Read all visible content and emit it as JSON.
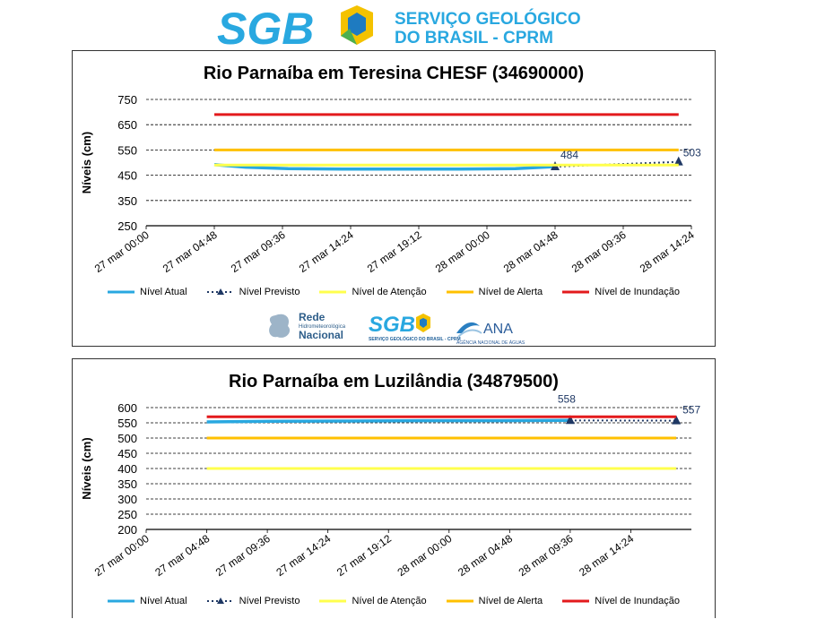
{
  "header": {
    "logo_text": "SGB",
    "org_line1": "SERVIÇO GEOLÓGICO",
    "org_line2": "DO BRASIL - CPRM"
  },
  "partners": {
    "rede_line1": "Rede",
    "rede_line2": "Hidrometeorológica",
    "rede_line3": "Nacional",
    "sgb_small": "SGB",
    "sgb_small_sub": "SERVIÇO GEOLÓGICO DO BRASIL - CPRM",
    "ana_text": "ANA",
    "ana_sub": "AGÊNCIA NACIONAL DE ÁGUAS"
  },
  "colors": {
    "atual": "#29a8e0",
    "previsto": "#1f3864",
    "atencao": "#ffff4d",
    "alerta": "#ffc000",
    "inundacao": "#e31a1c",
    "grid": "#000000"
  },
  "legend": {
    "atual": "Nível Atual",
    "previsto": "Nível Previsto",
    "atencao": "Nível de Atenção",
    "alerta": "Nível de Alerta",
    "inundacao": "Nível de Inundação"
  },
  "chart_data": [
    {
      "type": "line",
      "title": "Rio Parnaíba em Teresina CHESF (34690000)",
      "ylabel": "Níveis  (cm)",
      "xlabel": "",
      "x_tick_labels": [
        "27 mar 00:00",
        "27 mar 04:48",
        "27 mar 09:36",
        "27 mar 14:24",
        "27 mar 19:12",
        "28 mar 00:00",
        "28 mar 04:48",
        "28 mar 09:36",
        "28 mar 14:24"
      ],
      "xlim_hours": [
        0,
        38.4
      ],
      "ylim": [
        250,
        750
      ],
      "y_ticks": [
        250,
        350,
        450,
        550,
        650,
        750
      ],
      "y_tick_labels": [
        "250",
        "350",
        "450",
        "550",
        "650",
        "750"
      ],
      "grid": "horizontal dashed",
      "legend_position": "bottom",
      "series": [
        {
          "name": "Nível Atual",
          "kind": "observed",
          "x": [
            4.8,
            7,
            10,
            14,
            18,
            22,
            26,
            28.8
          ],
          "y": [
            492,
            482,
            476,
            474,
            474,
            474,
            476,
            484
          ]
        },
        {
          "name": "Nível Previsto",
          "kind": "forecast",
          "x": [
            28.8,
            37.5
          ],
          "y": [
            484,
            503
          ]
        },
        {
          "name": "Nível de Atenção",
          "kind": "threshold",
          "x": [
            4.8,
            37.5
          ],
          "y": [
            490,
            490
          ]
        },
        {
          "name": "Nível de Alerta",
          "kind": "threshold",
          "x": [
            4.8,
            37.5
          ],
          "y": [
            550,
            550
          ]
        },
        {
          "name": "Nível de Inundação",
          "kind": "threshold",
          "x": [
            4.8,
            37.5
          ],
          "y": [
            690,
            690
          ]
        }
      ],
      "annotations": [
        {
          "text": "484",
          "x": 28.8,
          "y": 484
        },
        {
          "text": "503",
          "x": 37.5,
          "y": 503
        }
      ]
    },
    {
      "type": "line",
      "title": "Rio Parnaíba em Luzilândia (34879500)",
      "ylabel": "Níveis  (cm)",
      "xlabel": "",
      "x_tick_labels": [
        "27 mar 00:00",
        "27 mar 04:48",
        "27 mar 09:36",
        "27 mar 14:24",
        "27 mar 19:12",
        "28 mar 00:00",
        "28 mar 04:48",
        "28 mar 09:36",
        "28 mar 14:24"
      ],
      "xlim_hours": [
        0,
        43.2
      ],
      "ylim": [
        200,
        600
      ],
      "y_ticks": [
        200,
        250,
        300,
        350,
        400,
        450,
        500,
        550,
        600
      ],
      "y_tick_labels": [
        "200",
        "250",
        "300",
        "350",
        "400",
        "450",
        "500",
        "550",
        "600"
      ],
      "grid": "horizontal dashed",
      "legend_position": "bottom",
      "series": [
        {
          "name": "Nível Atual",
          "kind": "observed",
          "x": [
            4.8,
            10,
            16,
            22,
            28,
            33.6
          ],
          "y": [
            553,
            555,
            556,
            557,
            557,
            558
          ]
        },
        {
          "name": "Nível Previsto",
          "kind": "forecast",
          "x": [
            33.6,
            42
          ],
          "y": [
            558,
            557
          ]
        },
        {
          "name": "Nível de Atenção",
          "kind": "threshold",
          "x": [
            4.8,
            42
          ],
          "y": [
            400,
            400
          ]
        },
        {
          "name": "Nível de Alerta",
          "kind": "threshold",
          "x": [
            4.8,
            42
          ],
          "y": [
            500,
            500
          ]
        },
        {
          "name": "Nível de Inundação",
          "kind": "threshold",
          "x": [
            4.8,
            42
          ],
          "y": [
            570,
            570
          ]
        }
      ],
      "annotations": [
        {
          "text": "558",
          "x": 33.6,
          "y": 558
        },
        {
          "text": "557",
          "x": 42,
          "y": 557
        }
      ]
    }
  ]
}
